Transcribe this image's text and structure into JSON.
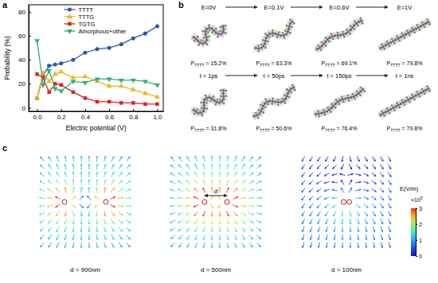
{
  "panel_labels": [
    "a",
    "b",
    "c"
  ],
  "chart_data": {
    "type": "line",
    "x_label": "Electric potential (V)",
    "y_label": "Probability (%)",
    "x": [
      0,
      0.05,
      0.1,
      0.15,
      0.2,
      0.3,
      0.4,
      0.5,
      0.6,
      0.7,
      0.8,
      0.9,
      1.0
    ],
    "series": [
      {
        "name": "TTTT",
        "color": "#2b5aa8",
        "marker": "circle",
        "values": [
          8,
          27,
          35,
          36,
          37,
          40,
          46,
          49,
          50,
          53,
          58,
          62,
          68
        ]
      },
      {
        "name": "TTTG",
        "color": "#f2b31b",
        "marker": "triangle",
        "values": [
          8,
          29,
          22,
          28,
          30,
          25,
          26,
          22,
          18,
          18,
          15,
          12,
          9
        ]
      },
      {
        "name": "TGTG",
        "color": "#e02020",
        "marker": "square",
        "values": [
          28,
          25,
          13,
          20,
          19,
          13,
          8,
          5,
          5,
          4,
          4,
          3,
          3
        ]
      },
      {
        "name": "Amorphous+other",
        "color": "#2ab07a",
        "marker": "triangle-down",
        "values": [
          56,
          19,
          31,
          16,
          14,
          22,
          21,
          24,
          24,
          23,
          23,
          22,
          19
        ]
      }
    ],
    "xlim": [
      -0.07,
      1.05
    ],
    "ylim": [
      -3,
      86
    ],
    "xticks": [
      {
        "value": 0,
        "label": "0.0"
      },
      0.2,
      0.4,
      0.6,
      0.8,
      {
        "value": 1,
        "label": "1.0"
      }
    ],
    "yticks": [
      0,
      20,
      40,
      60,
      80
    ],
    "legend": "upper center"
  },
  "panel_b": {
    "rows": [
      {
        "items": [
          {
            "condition": "E=0V",
            "symbol": "P",
            "subscript": "TTTT",
            "value_text": "= 15.2%"
          },
          {
            "condition": "E=0.1V",
            "symbol": "P",
            "subscript": "TTTT",
            "value_text": "= 63.3%"
          },
          {
            "condition": "E=0.6V",
            "symbol": "P",
            "subscript": "TTTT",
            "value_text": "= 69.1%"
          },
          {
            "condition": "E=1V",
            "symbol": "P",
            "subscript": "TTTT",
            "value_text": "= 79.8%"
          }
        ]
      },
      {
        "items": [
          {
            "condition": "t = 1ps",
            "symbol": "P",
            "subscript": "TTTT",
            "value_text": "= 31.8%"
          },
          {
            "condition": "t = 50ps",
            "symbol": "P",
            "subscript": "TTTT",
            "value_text": "= 50.6%"
          },
          {
            "condition": "t = 150ps",
            "symbol": "P",
            "subscript": "TTTT",
            "value_text": "= 76.4%"
          },
          {
            "condition": "t = 1ns",
            "symbol": "P",
            "subscript": "TTTT",
            "value_text": "= 79.8%"
          }
        ]
      }
    ]
  },
  "panel_c": {
    "plots": [
      {
        "label": "d = 900nm"
      },
      {
        "label": "d = 500nm"
      },
      {
        "label": "d = 100nm"
      }
    ],
    "spacing_label": "d",
    "colorbar": {
      "label": "E(V/m)",
      "multiplier": "×10",
      "exponent": "5",
      "range": [
        0,
        3
      ],
      "ticks": [
        0,
        1,
        2,
        3
      ]
    }
  }
}
